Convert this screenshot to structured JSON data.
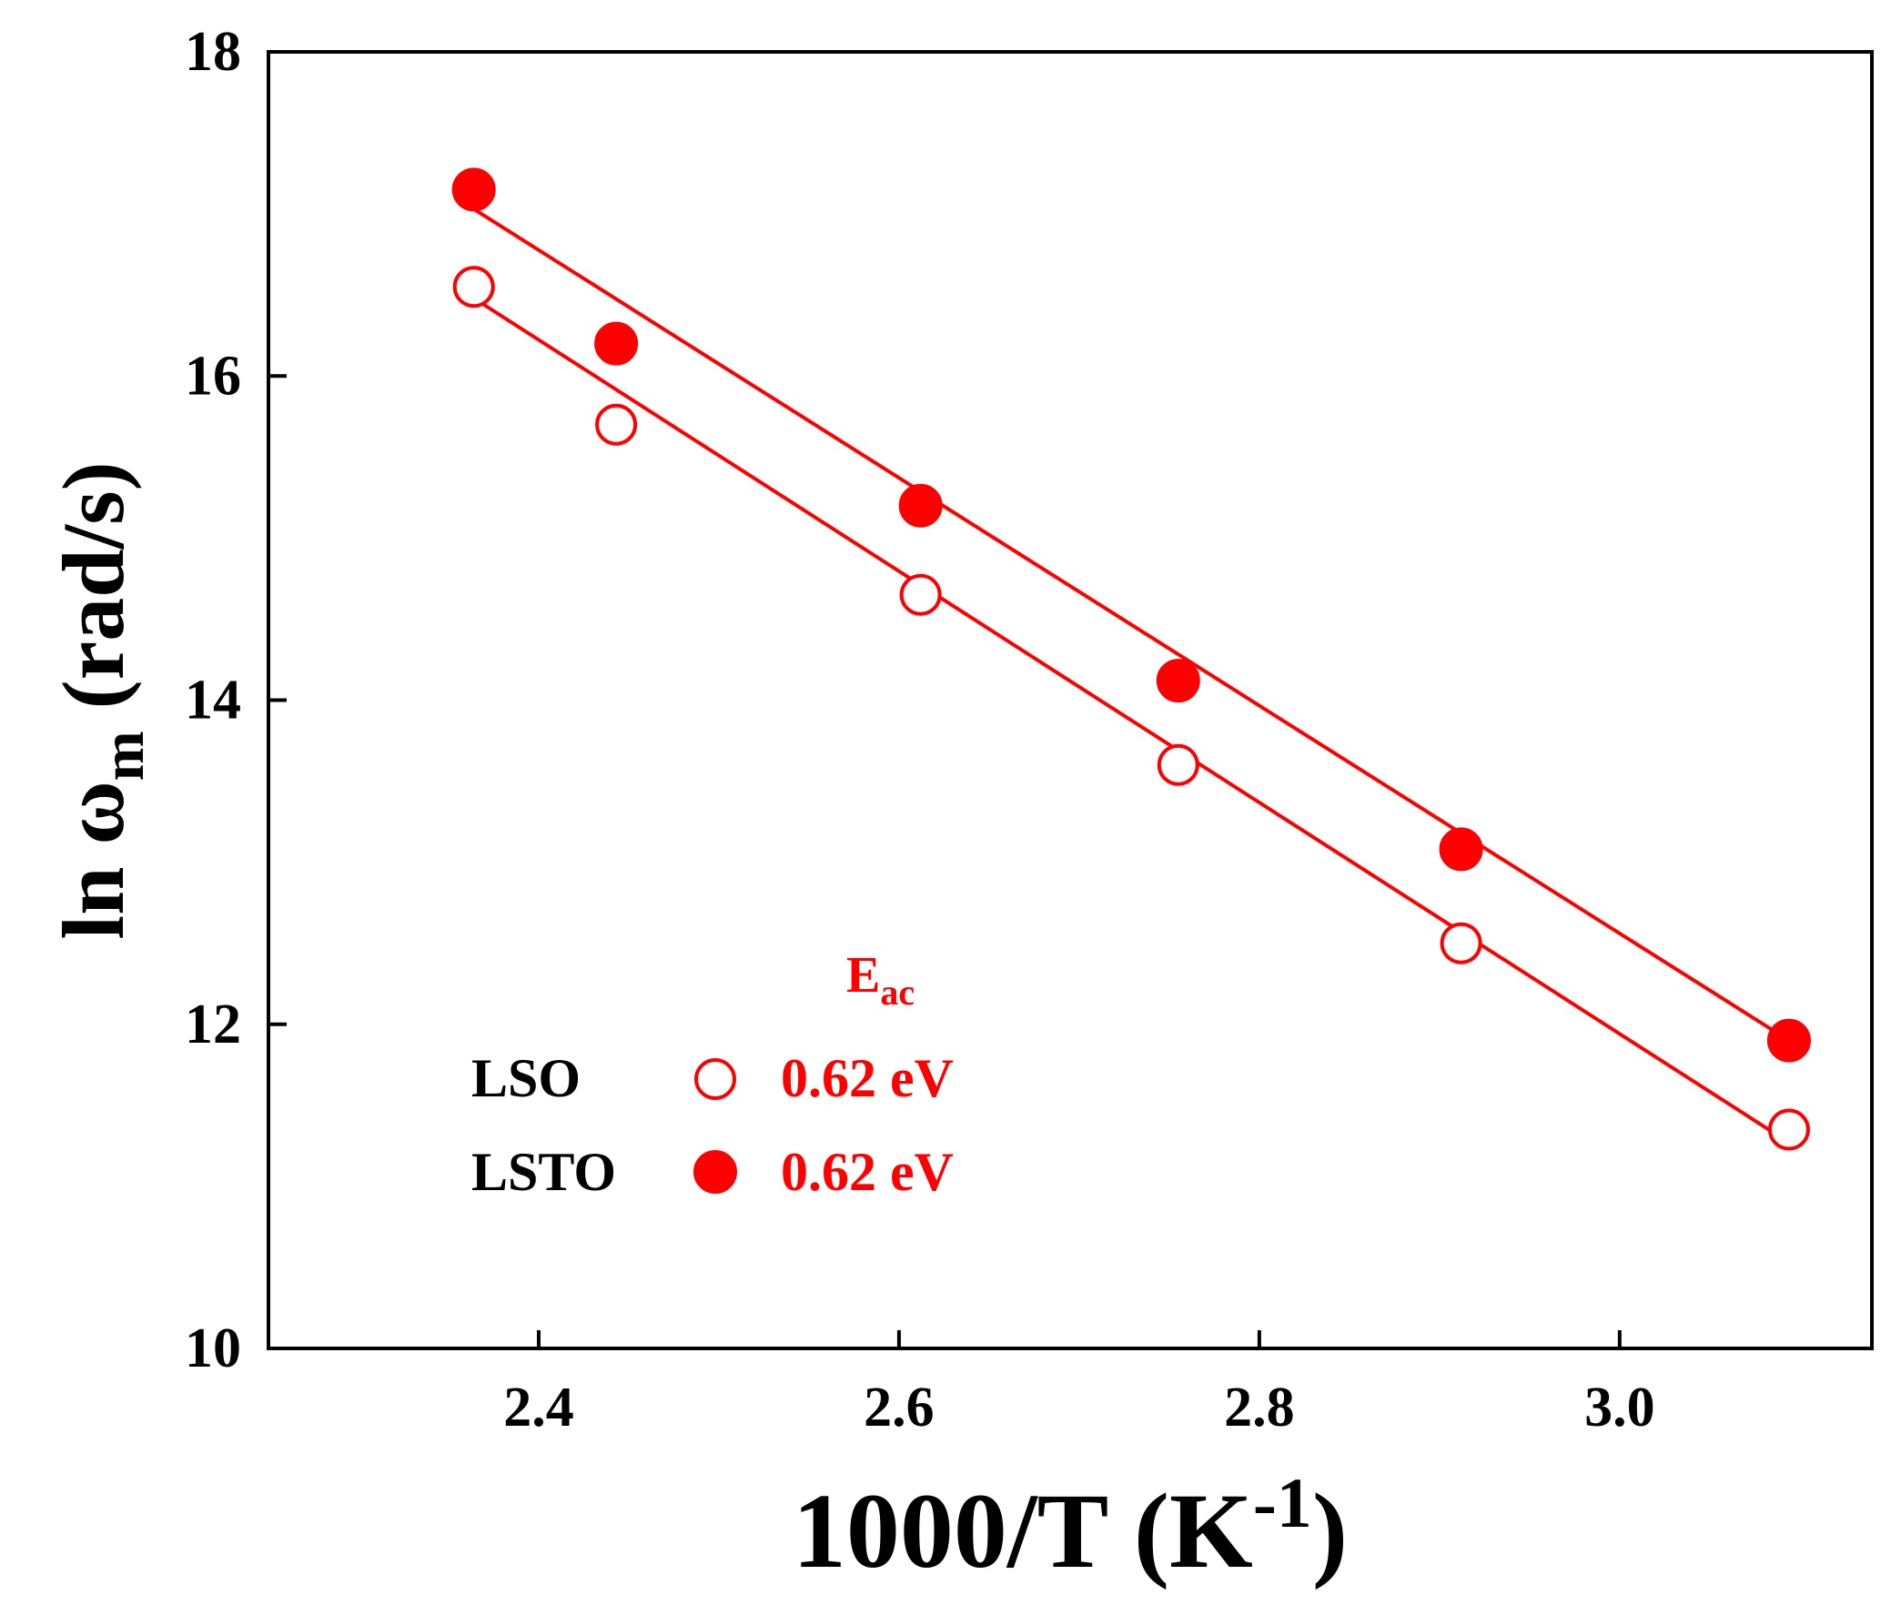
{
  "chart_data": {
    "type": "scatter",
    "title": "",
    "xlabel": {
      "main": "1000/T (K",
      "sup": "-1",
      "end": ")"
    },
    "ylabel": {
      "prefix": "ln ω",
      "sub": "m",
      "suffix": " (rad/s)"
    },
    "xlim": [
      2.25,
      3.14
    ],
    "ylim": [
      10,
      18
    ],
    "x_ticks": [
      "2.4",
      "2.6",
      "2.8",
      "3.0"
    ],
    "y_ticks": [
      "10",
      "12",
      "14",
      "16",
      "18"
    ],
    "colors": {
      "series": "#ff0000",
      "axis": "#000000",
      "label": "#000000"
    },
    "series": [
      {
        "name": "LSO",
        "marker": "open-circle",
        "x": [
          2.364,
          2.443,
          2.612,
          2.755,
          2.912,
          3.094
        ],
        "y": [
          16.55,
          15.7,
          14.65,
          13.6,
          12.5,
          11.35
        ],
        "fit": {
          "x": [
            2.364,
            3.094
          ],
          "y": [
            16.48,
            11.27
          ]
        }
      },
      {
        "name": "LSTO",
        "marker": "filled-circle",
        "x": [
          2.364,
          2.443,
          2.612,
          2.755,
          2.912,
          3.094
        ],
        "y": [
          17.15,
          16.2,
          15.2,
          14.12,
          13.08,
          11.9
        ],
        "fit": {
          "x": [
            2.364,
            3.094
          ],
          "y": [
            17.03,
            11.9
          ]
        }
      }
    ],
    "legend": {
      "header_main": "E",
      "header_sub": "ac",
      "entries": [
        {
          "label": "LSO",
          "value": "0.62 eV",
          "marker": "open-circle"
        },
        {
          "label": "LSTO",
          "value": "0.62 eV",
          "marker": "filled-circle"
        }
      ]
    }
  }
}
